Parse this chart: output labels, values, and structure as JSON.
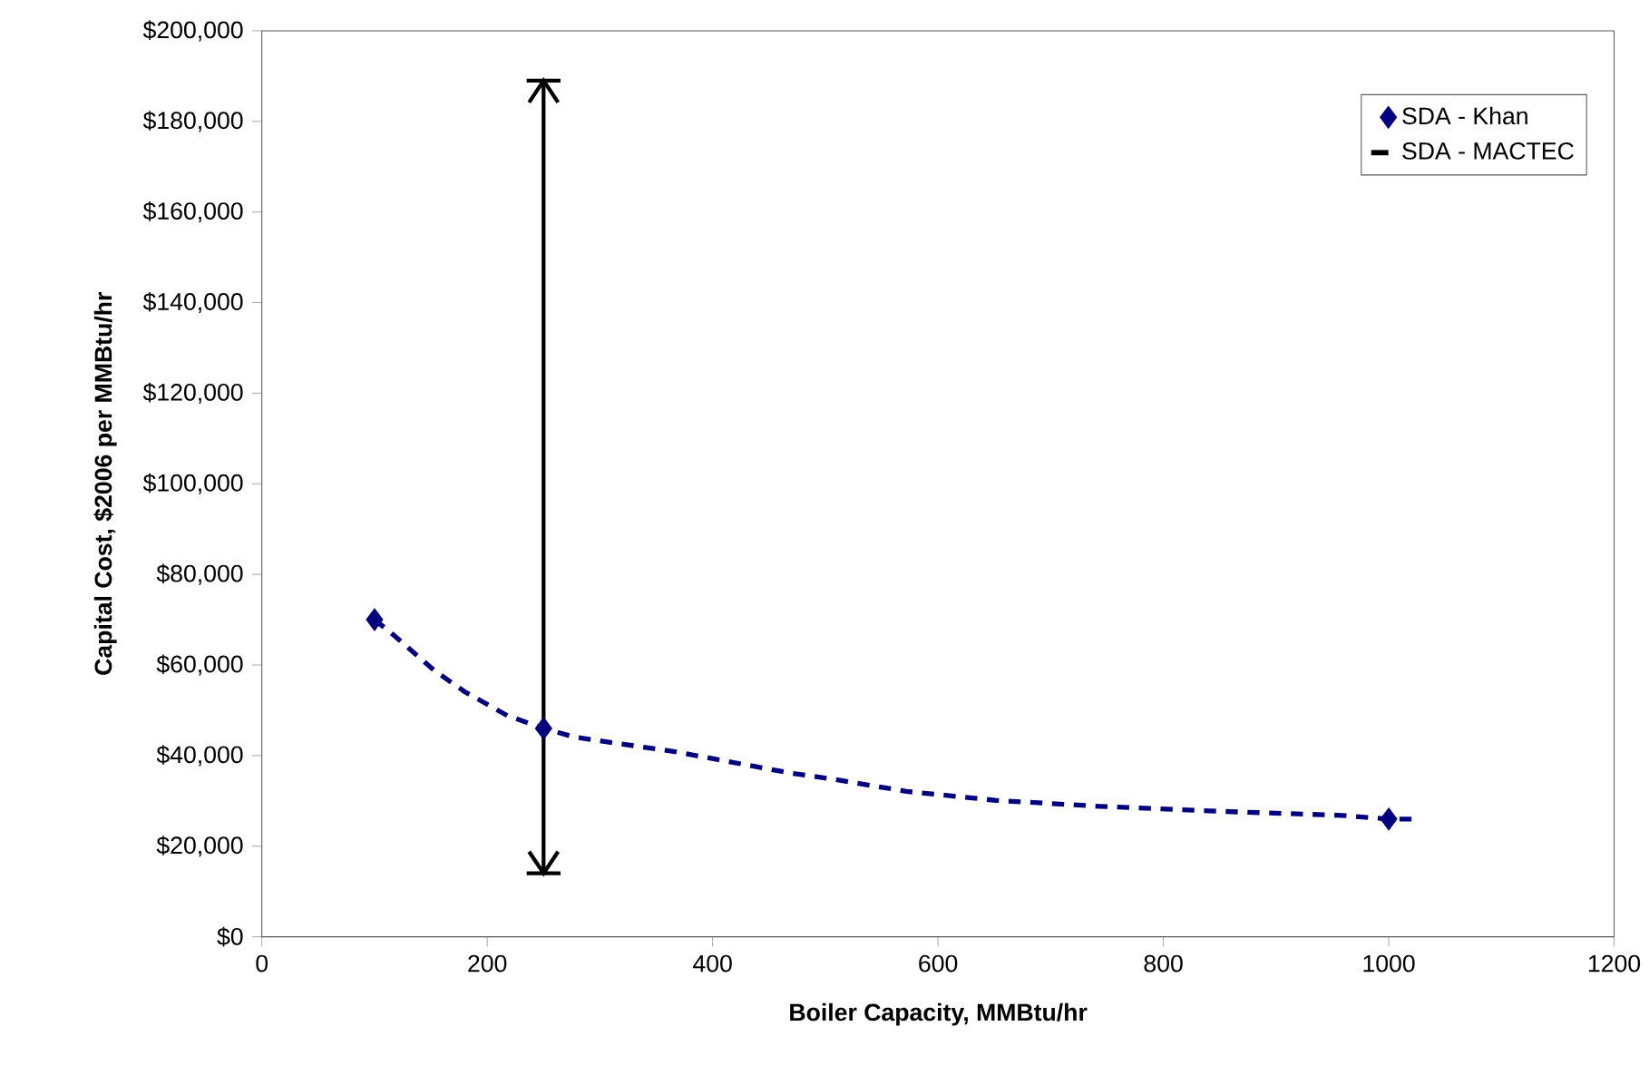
{
  "chart_data": {
    "type": "scatter",
    "xlabel": "Boiler Capacity, MMBtu/hr",
    "ylabel": "Capital Cost, $2006 per MMBtu/hr",
    "xlim": [
      0,
      1200
    ],
    "xticks": [
      0,
      200,
      400,
      600,
      800,
      1000,
      1200
    ],
    "ylim": [
      0,
      200000
    ],
    "yticks": [
      {
        "value": 0,
        "label": "$0"
      },
      {
        "value": 20000,
        "label": "$20,000"
      },
      {
        "value": 40000,
        "label": "$40,000"
      },
      {
        "value": 60000,
        "label": "$60,000"
      },
      {
        "value": 80000,
        "label": "$80,000"
      },
      {
        "value": 100000,
        "label": "$100,000"
      },
      {
        "value": 120000,
        "label": "$120,000"
      },
      {
        "value": 140000,
        "label": "$140,000"
      },
      {
        "value": 160000,
        "label": "$160,000"
      },
      {
        "value": 180000,
        "label": "$180,000"
      },
      {
        "value": 200000,
        "label": "$200,000"
      }
    ],
    "grid": false,
    "legend": "top right",
    "series": [
      {
        "name": "SDA - Khan",
        "type": "scatter",
        "marker": "diamond",
        "color": "#000080",
        "x": [
          100,
          250,
          1000
        ],
        "values": [
          70000,
          46000,
          26000
        ]
      },
      {
        "type": "line",
        "line_style": "dashed",
        "marker": "none",
        "color": "#000080",
        "x": [
          100,
          116,
          153,
          180,
          218,
          250,
          277,
          368,
          470,
          507,
          572,
          652,
          743,
          850,
          958,
          1000,
          1022
        ],
        "values": [
          70000,
          66800,
          58800,
          54100,
          48800,
          46000,
          44100,
          40800,
          36100,
          34800,
          32100,
          30100,
          28800,
          27700,
          26800,
          26000,
          26000
        ]
      },
      {
        "name": "SDA - MACTEC",
        "type": "line",
        "line_style": "solid",
        "marker": "none",
        "color": "#000000",
        "x": [
          250,
          250
        ],
        "values": [
          14000,
          189000
        ]
      }
    ]
  }
}
